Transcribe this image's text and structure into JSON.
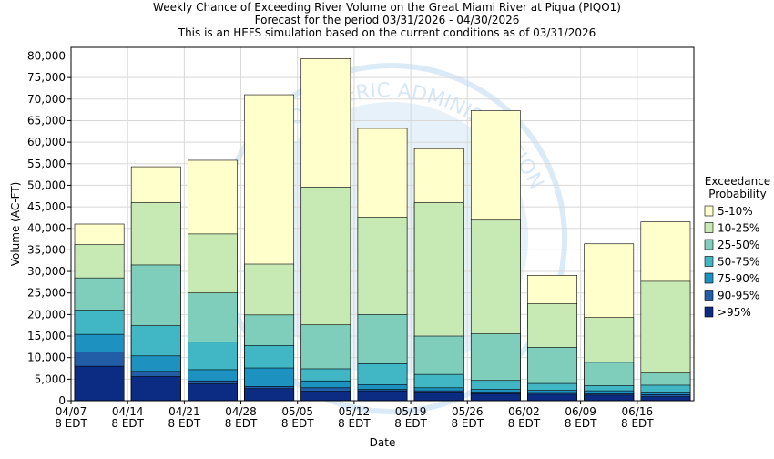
{
  "title_lines": [
    "Weekly Chance of Exceeding River Volume on the Great Miami River at Piqua (PIQO1)",
    "Forecast for the period 03/31/2026 - 04/30/2026",
    "This is an HEFS simulation based on the current conditions as of 03/31/2026"
  ],
  "watermark_text": "ATMOSPHERIC ADMINISTRATION",
  "chart_data": {
    "type": "bar",
    "subtype": "stacked",
    "xlabel": "Date",
    "ylabel": "Volume (AC-FT)",
    "ylim": [
      0,
      82000
    ],
    "yticks": [
      0,
      5000,
      10000,
      15000,
      20000,
      25000,
      30000,
      35000,
      40000,
      45000,
      50000,
      55000,
      60000,
      65000,
      70000,
      75000,
      80000
    ],
    "ytick_labels": [
      "0",
      "5,000",
      "10,000",
      "15,000",
      "20,000",
      "25,000",
      "30,000",
      "35,000",
      "40,000",
      "45,000",
      "50,000",
      "55,000",
      "60,000",
      "65,000",
      "70,000",
      "75,000",
      "80,000"
    ],
    "xtick_labels": [
      [
        "04/07",
        "8 EDT"
      ],
      [
        "04/14",
        "8 EDT"
      ],
      [
        "04/21",
        "8 EDT"
      ],
      [
        "04/28",
        "8 EDT"
      ],
      [
        "05/05",
        "8 EDT"
      ],
      [
        "05/12",
        "8 EDT"
      ],
      [
        "05/19",
        "8 EDT"
      ],
      [
        "05/26",
        "8 EDT"
      ],
      [
        "06/02",
        "8 EDT"
      ],
      [
        "06/09",
        "8 EDT"
      ],
      [
        "06/16",
        "8 EDT"
      ]
    ],
    "bar_count": 11,
    "grid": true,
    "legend": {
      "title": [
        "Exceedance",
        "Probability"
      ],
      "placement": "right",
      "entries": [
        "5-10%",
        "10-25%",
        "25-50%",
        "50-75%",
        "75-90%",
        "90-95%",
        ">95%"
      ]
    },
    "colors": [
      "#ffffcc",
      "#c7e9b4",
      "#7fcdbb",
      "#41b6c4",
      "#1d91c0",
      "#225ea8",
      "#0c2c84"
    ],
    "bars": [
      [
        41000,
        36200,
        28500,
        21000,
        15400,
        11300,
        8000
      ],
      [
        54300,
        46000,
        31500,
        17400,
        10400,
        6800,
        5600
      ],
      [
        55800,
        38700,
        25000,
        13600,
        7200,
        4600,
        3900
      ],
      [
        71000,
        31700,
        19900,
        12800,
        7600,
        3300,
        2800
      ],
      [
        79400,
        49600,
        17600,
        7400,
        4600,
        3000,
        2200
      ],
      [
        63200,
        42600,
        20000,
        8600,
        3700,
        2600,
        2300
      ],
      [
        58500,
        46000,
        15000,
        6100,
        3000,
        2300,
        2000
      ],
      [
        67300,
        41900,
        15500,
        4700,
        2600,
        2000,
        1600
      ],
      [
        29100,
        22500,
        12400,
        4000,
        2400,
        1900,
        1500
      ],
      [
        36400,
        19300,
        8900,
        3500,
        2300,
        1600,
        1300
      ],
      [
        41500,
        27700,
        6400,
        3600,
        2000,
        1400,
        900
      ]
    ]
  }
}
